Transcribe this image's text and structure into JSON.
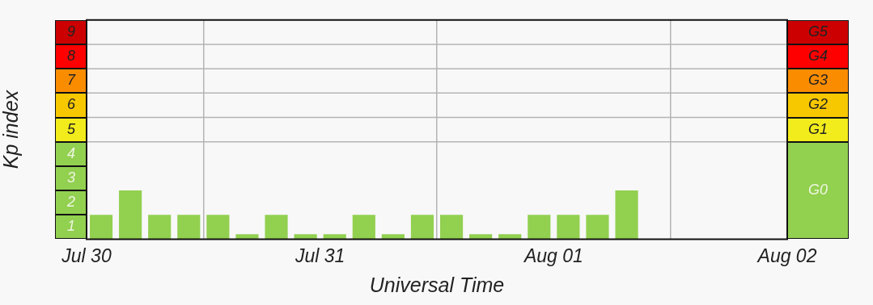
{
  "chart_data": {
    "type": "bar",
    "xlabel": "Universal Time",
    "ylabel": "Kp index",
    "x": [
      "--07-30T01:30",
      "--07-30T04:30",
      "--07-30T07:30",
      "--07-30T10:30",
      "--07-30T13:30",
      "--07-30T16:30",
      "--07-30T19:30",
      "--07-30T22:30",
      "--07-31T01:30",
      "--07-31T04:30",
      "--07-31T07:30",
      "--07-31T10:30",
      "--07-31T13:30",
      "--07-31T16:30",
      "--07-31T19:30",
      "--07-31T22:30",
      "--08-01T01:30",
      "--08-01T04:30",
      "--08-01T07:30"
    ],
    "series": [
      {
        "color": "#92d050",
        "values": [
          1,
          2,
          1,
          1,
          1,
          0.2,
          1,
          0.2,
          0.2,
          1,
          0.2,
          1,
          1,
          0.2,
          0.2,
          1,
          1,
          1,
          2
        ]
      }
    ],
    "xlim": [
      "--07-30",
      "--08-02"
    ],
    "xticks": [
      {
        "value": "--07-30",
        "label": "Jul 30"
      },
      {
        "value": "--07-31",
        "label": "Jul 31"
      },
      {
        "value": "--08-01",
        "label": "Aug 01"
      },
      {
        "value": "--08-02",
        "label": "Aug 02"
      }
    ],
    "ylim": [
      0,
      9
    ],
    "yticks": [
      {
        "value": 0.5,
        "label": "1"
      },
      {
        "value": 1.5,
        "label": "2"
      },
      {
        "value": 2.5,
        "label": "3"
      },
      {
        "value": 3.5,
        "label": "4"
      },
      {
        "value": 4.5,
        "label": "5"
      },
      {
        "value": 5.5,
        "label": "6"
      },
      {
        "value": 6.5,
        "label": "7"
      },
      {
        "value": 7.5,
        "label": "8"
      },
      {
        "value": 8.5,
        "label": "9"
      }
    ],
    "annotations": [
      "G0",
      "G1",
      "G2",
      "G3",
      "G4",
      "G5"
    ],
    "ref_lines": [
      {
        "axis": "y",
        "value": 4,
        "color": "#b4b4b4"
      },
      {
        "axis": "y",
        "value": 5,
        "color": "#b4b4b4"
      },
      {
        "axis": "y",
        "value": 6,
        "color": "#b4b4b4"
      },
      {
        "axis": "y",
        "value": 7,
        "color": "#b4b4b4"
      },
      {
        "axis": "y",
        "value": 8,
        "color": "#b4b4b4"
      }
    ],
    "grid": "x",
    "legend": false
  }
}
